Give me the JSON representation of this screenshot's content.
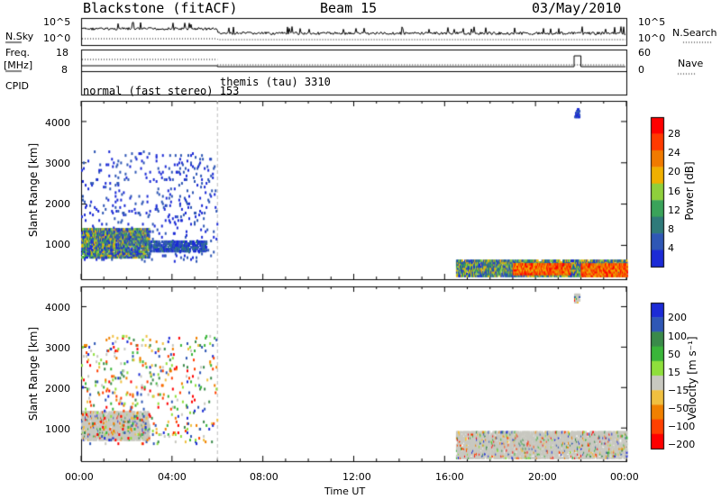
{
  "header": {
    "station": "Blackstone (fitACF)",
    "beam": "Beam 15",
    "date": "03/May/2010"
  },
  "strip_labels": {
    "nsky": "N.Sky",
    "nsearch": "N.Search",
    "freq": "Freq.",
    "freq_unit": "[MHz]",
    "nave": "Nave",
    "cpid": "CPID",
    "nsky_ticks": [
      "10^5",
      "10^0"
    ],
    "freq_ticks": [
      "18",
      "8"
    ],
    "nave_ticks": [
      "60",
      "0"
    ]
  },
  "cpid": {
    "mode1": "normal (fast stereo) 153",
    "mode2": "themis (tau) 3310"
  },
  "chart_data": [
    {
      "type": "heatmap",
      "name": "power",
      "ylabel": "Slant Range [km]",
      "ylim": [
        180,
        4500
      ],
      "yticks": [
        "1000",
        "2000",
        "3000",
        "4000"
      ],
      "colorbar_label": "Power [dB]",
      "colorbar_ticks": [
        "4",
        "8",
        "12",
        "16",
        "20",
        "24",
        "28"
      ],
      "colors": [
        "#1c2bd6",
        "#2f57b5",
        "#2f7a7a",
        "#3aa35a",
        "#8fcf3c",
        "#f0b000",
        "#f07a00",
        "#ff3a00",
        "#ff0000"
      ],
      "data_regions": [
        {
          "t": [
            0.0,
            3.0
          ],
          "r": [
            700,
            1400
          ],
          "level": "high"
        },
        {
          "t": [
            0.0,
            6.0
          ],
          "r": [
            600,
            3300
          ],
          "level": "sparse"
        },
        {
          "t": [
            3.0,
            5.5
          ],
          "r": [
            850,
            1100
          ],
          "level": "medium"
        },
        {
          "t": [
            16.5,
            24.0
          ],
          "r": [
            250,
            650
          ],
          "level": "high"
        },
        {
          "t": [
            19.0,
            21.5
          ],
          "r": [
            300,
            550
          ],
          "level": "max"
        },
        {
          "t": [
            22.0,
            24.0
          ],
          "r": [
            250,
            550
          ],
          "level": "max"
        },
        {
          "t": [
            21.7,
            21.9
          ],
          "r": [
            4100,
            4300
          ],
          "level": "low"
        }
      ]
    },
    {
      "type": "heatmap",
      "name": "velocity",
      "ylabel": "Slant Range [km]",
      "ylim": [
        180,
        4500
      ],
      "yticks": [
        "1000",
        "2000",
        "3000",
        "4000"
      ],
      "colorbar_label": "Velocity [m s⁻¹]",
      "colorbar_ticks": [
        "200",
        "100",
        "50",
        "15",
        "−15",
        "−50",
        "−100",
        "−200"
      ],
      "colors": [
        "#1c2bd6",
        "#2f57b5",
        "#3a8a4a",
        "#3ab53a",
        "#8fdf3c",
        "#c8c8c0",
        "#f0c040",
        "#f08000",
        "#ff4000",
        "#ff0000"
      ],
      "data_regions": [
        {
          "t": [
            0.0,
            3.0
          ],
          "r": [
            700,
            1400
          ],
          "level": "ground"
        },
        {
          "t": [
            0.0,
            6.0
          ],
          "r": [
            600,
            3300
          ],
          "level": "sparse"
        },
        {
          "t": [
            16.5,
            24.0
          ],
          "r": [
            250,
            900
          ],
          "level": "ground"
        },
        {
          "t": [
            21.7,
            21.9
          ],
          "r": [
            4100,
            4300
          ],
          "level": "ground"
        }
      ]
    }
  ],
  "xaxis": {
    "label": "Time UT",
    "ticks": [
      "00:00",
      "04:00",
      "08:00",
      "12:00",
      "16:00",
      "20:00",
      "00:00"
    ],
    "xlim": [
      0,
      24
    ],
    "mode_change": 6.0
  }
}
